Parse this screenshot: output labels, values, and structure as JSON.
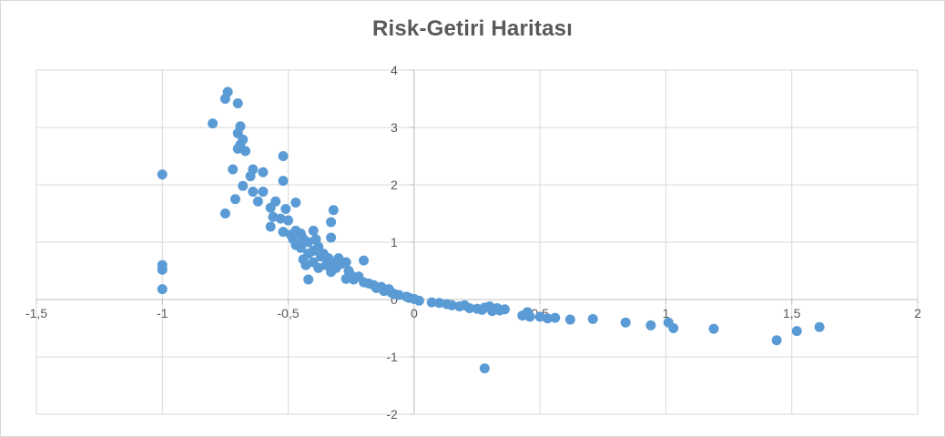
{
  "chart_data": {
    "type": "scatter",
    "title": "Risk-Getiri Haritası",
    "xlabel": "",
    "ylabel": "",
    "xlim": [
      -1.5,
      2
    ],
    "ylim": [
      -2,
      4
    ],
    "x_ticks": [
      "-1,5",
      "-1",
      "-0,5",
      "0",
      "0,5",
      "1",
      "1,5",
      "2"
    ],
    "y_ticks": [
      "-2",
      "-1",
      "0",
      "1",
      "2",
      "3",
      "4"
    ],
    "x_tick_values": [
      -1.5,
      -1,
      -0.5,
      0,
      0.5,
      1,
      1.5,
      2
    ],
    "y_tick_values": [
      -2,
      -1,
      0,
      1,
      2,
      3,
      4
    ],
    "grid": true,
    "legend": "none",
    "marker_color": "#5b9bd5",
    "series": [
      {
        "points": [
          [
            -1.0,
            2.18
          ],
          [
            -1.0,
            0.6
          ],
          [
            -1.0,
            0.52
          ],
          [
            -1.0,
            0.18
          ],
          [
            -0.8,
            3.07
          ],
          [
            -0.75,
            3.5
          ],
          [
            -0.74,
            3.62
          ],
          [
            -0.7,
            3.42
          ],
          [
            -0.69,
            3.02
          ],
          [
            -0.7,
            2.9
          ],
          [
            -0.68,
            2.79
          ],
          [
            -0.69,
            2.7
          ],
          [
            -0.7,
            2.63
          ],
          [
            -0.67,
            2.59
          ],
          [
            -0.72,
            2.27
          ],
          [
            -0.64,
            2.27
          ],
          [
            -0.6,
            2.22
          ],
          [
            -0.65,
            2.15
          ],
          [
            -0.68,
            1.98
          ],
          [
            -0.64,
            1.88
          ],
          [
            -0.6,
            1.88
          ],
          [
            -0.71,
            1.75
          ],
          [
            -0.62,
            1.71
          ],
          [
            -0.75,
            1.5
          ],
          [
            -0.55,
            1.71
          ],
          [
            -0.52,
            2.5
          ],
          [
            -0.52,
            2.07
          ],
          [
            -0.47,
            1.69
          ],
          [
            -0.51,
            1.58
          ],
          [
            -0.57,
            1.6
          ],
          [
            -0.56,
            1.44
          ],
          [
            -0.53,
            1.41
          ],
          [
            -0.5,
            1.38
          ],
          [
            -0.57,
            1.27
          ],
          [
            -0.52,
            1.18
          ],
          [
            -0.49,
            1.13
          ],
          [
            -0.47,
            1.2
          ],
          [
            -0.45,
            1.15
          ],
          [
            -0.48,
            1.05
          ],
          [
            -0.44,
            1.06
          ],
          [
            -0.47,
            0.95
          ],
          [
            -0.42,
            1.0
          ],
          [
            -0.4,
            1.2
          ],
          [
            -0.39,
            1.05
          ],
          [
            -0.38,
            0.92
          ],
          [
            -0.4,
            0.85
          ],
          [
            -0.42,
            0.8
          ],
          [
            -0.37,
            0.75
          ],
          [
            -0.36,
            0.8
          ],
          [
            -0.34,
            0.72
          ],
          [
            -0.33,
            0.65
          ],
          [
            -0.35,
            0.6
          ],
          [
            -0.4,
            0.65
          ],
          [
            -0.44,
            0.7
          ],
          [
            -0.45,
            0.9
          ],
          [
            -0.43,
            0.6
          ],
          [
            -0.38,
            0.55
          ],
          [
            -0.33,
            1.35
          ],
          [
            -0.32,
            1.56
          ],
          [
            -0.33,
            1.08
          ],
          [
            -0.3,
            0.72
          ],
          [
            -0.29,
            0.62
          ],
          [
            -0.27,
            0.65
          ],
          [
            -0.31,
            0.55
          ],
          [
            -0.26,
            0.5
          ],
          [
            -0.33,
            0.48
          ],
          [
            -0.42,
            0.35
          ],
          [
            -0.25,
            0.42
          ],
          [
            -0.22,
            0.4
          ],
          [
            -0.27,
            0.36
          ],
          [
            -0.24,
            0.35
          ],
          [
            -0.2,
            0.68
          ],
          [
            -0.2,
            0.3
          ],
          [
            -0.18,
            0.28
          ],
          [
            -0.16,
            0.25
          ],
          [
            -0.15,
            0.2
          ],
          [
            -0.13,
            0.22
          ],
          [
            -0.12,
            0.15
          ],
          [
            -0.1,
            0.18
          ],
          [
            -0.09,
            0.12
          ],
          [
            -0.08,
            0.1
          ],
          [
            -0.06,
            0.08
          ],
          [
            -0.03,
            0.05
          ],
          [
            -0.02,
            0.03
          ],
          [
            0.0,
            0.01
          ],
          [
            0.02,
            -0.02
          ],
          [
            0.07,
            -0.05
          ],
          [
            0.1,
            -0.06
          ],
          [
            0.13,
            -0.08
          ],
          [
            0.15,
            -0.1
          ],
          [
            0.18,
            -0.12
          ],
          [
            0.2,
            -0.1
          ],
          [
            0.22,
            -0.15
          ],
          [
            0.25,
            -0.16
          ],
          [
            0.27,
            -0.18
          ],
          [
            0.28,
            -0.14
          ],
          [
            0.3,
            -0.12
          ],
          [
            0.31,
            -0.2
          ],
          [
            0.33,
            -0.15
          ],
          [
            0.34,
            -0.19
          ],
          [
            0.36,
            -0.17
          ],
          [
            0.28,
            -1.2
          ],
          [
            0.43,
            -0.28
          ],
          [
            0.45,
            -0.22
          ],
          [
            0.46,
            -0.3
          ],
          [
            0.5,
            -0.3
          ],
          [
            0.53,
            -0.33
          ],
          [
            0.56,
            -0.32
          ],
          [
            0.62,
            -0.35
          ],
          [
            0.71,
            -0.34
          ],
          [
            0.84,
            -0.4
          ],
          [
            0.94,
            -0.45
          ],
          [
            1.01,
            -0.4
          ],
          [
            1.03,
            -0.5
          ],
          [
            1.19,
            -0.51
          ],
          [
            1.44,
            -0.71
          ],
          [
            1.52,
            -0.55
          ],
          [
            1.61,
            -0.48
          ]
        ]
      }
    ]
  }
}
